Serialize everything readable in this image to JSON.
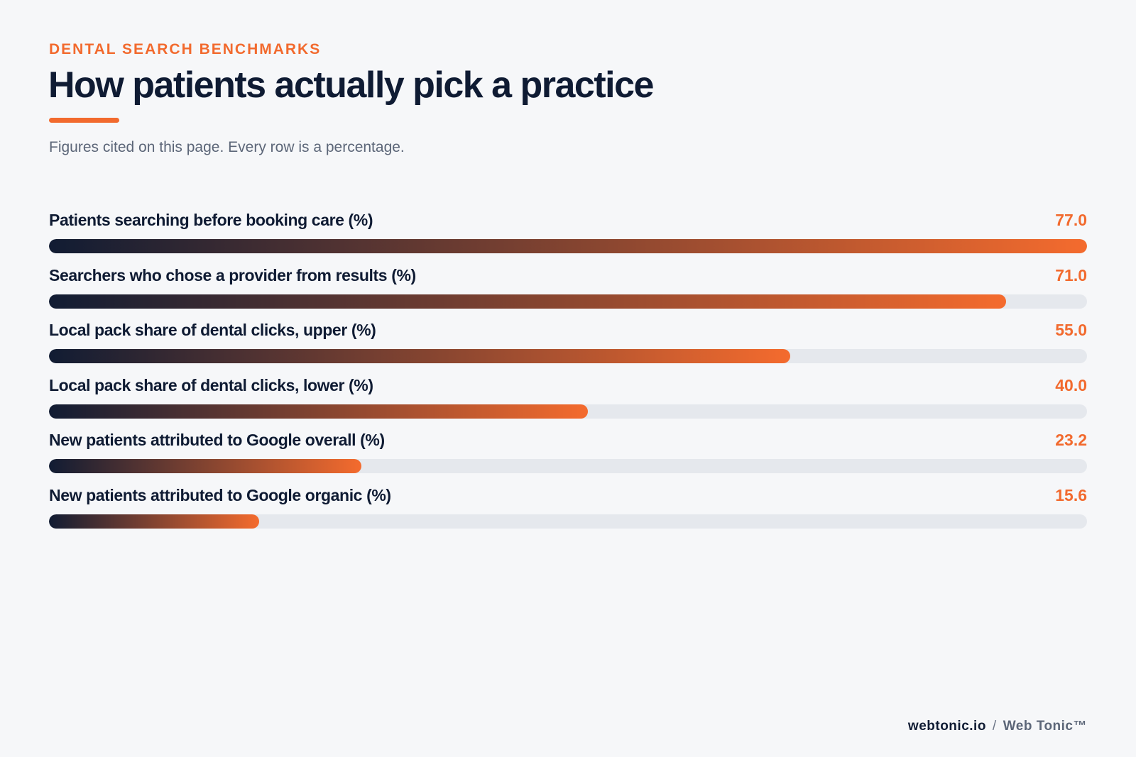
{
  "eyebrow": "DENTAL SEARCH BENCHMARKS",
  "title": "How patients actually pick a practice",
  "subtitle": "Figures cited on this page. Every row is a percentage.",
  "footer": {
    "domain": "webtonic.io",
    "separator": "/",
    "brand": "Web Tonic™"
  },
  "colors": {
    "accent": "#f26a2e",
    "ink": "#0f1b33",
    "track": "#e5e8ed"
  },
  "chart_data": {
    "type": "bar",
    "orientation": "horizontal",
    "categories": [
      "Patients searching before booking care (%)",
      "Searchers who chose a provider from results (%)",
      "Local pack share of dental clicks, upper (%)",
      "Local pack share of dental clicks, lower (%)",
      "New patients attributed to Google overall (%)",
      "New patients attributed to Google organic (%)"
    ],
    "values": [
      77.0,
      71.0,
      55.0,
      40.0,
      23.2,
      15.6
    ],
    "value_labels": [
      "77.0",
      "71.0",
      "55.0",
      "40.0",
      "23.2",
      "15.6"
    ],
    "xlim": [
      0,
      77.0
    ],
    "grid": false,
    "legend": "none"
  }
}
